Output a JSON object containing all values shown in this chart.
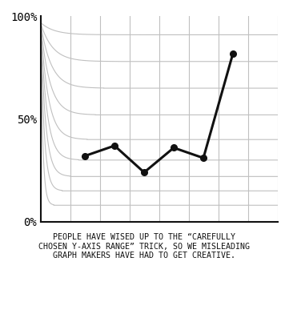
{
  "caption": "PEOPLE HAVE WISED UP TO THE “CAREFULLY\nCHOSEN Y-AXIS RANGE” TRICK, SO WE MISLEADING\nGRAPH MAKERS HAVE HAD TO GET CREATIVE.",
  "ytick_labels": [
    "0%",
    "50%",
    "100%"
  ],
  "ytick_vals": [
    0,
    50,
    100
  ],
  "data_x": [
    1.5,
    2.5,
    3.5,
    4.5,
    5.5,
    6.5
  ],
  "data_y": [
    32,
    37,
    24,
    36,
    31,
    82
  ],
  "bg_color": "#ffffff",
  "line_color": "#111111",
  "grid_color": "#c0c0c0",
  "num_curves": 9,
  "num_vlines": 7,
  "xlim": [
    0,
    8
  ],
  "ylim": [
    0,
    100
  ],
  "curve_y_levels": [
    8,
    15,
    22,
    30,
    40,
    52,
    65,
    78,
    91
  ]
}
